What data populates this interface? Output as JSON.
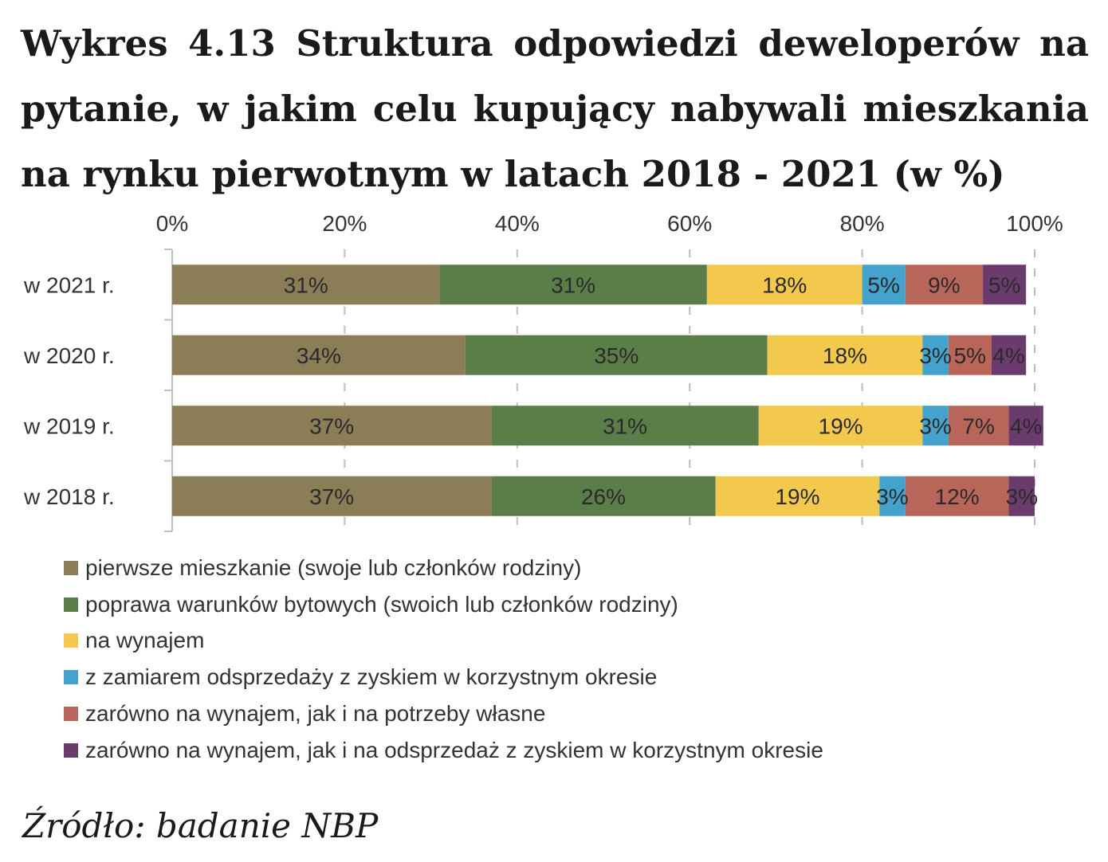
{
  "title": "Wykres 4.13 Struktura odpowiedzi deweloperów na pytanie, w jakim celu kupujący nabywali mieszkania na rynku pierwotnym w latach 2018 - 2021 (w %)",
  "source": "Źródło: badanie NBP",
  "chart_data": {
    "type": "bar",
    "orientation": "horizontal",
    "stacked": true,
    "normalized": true,
    "categories": [
      "w 2021 r.",
      "w 2020 r.",
      "w 2019 r.",
      "w 2018 r."
    ],
    "x_ticks": [
      "0%",
      "20%",
      "40%",
      "60%",
      "80%",
      "100%"
    ],
    "xlim": [
      0,
      100
    ],
    "x_axis_position": "top",
    "grid": "vertical dashed",
    "legend_position": "bottom",
    "series": [
      {
        "name": "pierwsze mieszkanie (swoje lub członków rodziny)",
        "color": "#8b7d55",
        "values": [
          31,
          34,
          37,
          37
        ],
        "labels": [
          "31%",
          "34%",
          "37%",
          "37%"
        ]
      },
      {
        "name": "poprawa warunków bytowych (swoich lub członków rodziny)",
        "color": "#5b7e49",
        "values": [
          31,
          35,
          31,
          26
        ],
        "labels": [
          "31%",
          "35%",
          "31%",
          "26%"
        ]
      },
      {
        "name": "na wynajem",
        "color": "#f2c94c",
        "values": [
          18,
          18,
          19,
          19
        ],
        "labels": [
          "18%",
          "18%",
          "19%",
          "19%"
        ]
      },
      {
        "name": "z zamiarem odsprzedaży z zyskiem w korzystnym okresie",
        "color": "#43a3cc",
        "values": [
          5,
          3,
          3,
          3
        ],
        "labels": [
          "5%",
          "3%",
          "3%",
          "3%"
        ]
      },
      {
        "name": "zarówno na wynajem, jak i na potrzeby własne",
        "color": "#b9665a",
        "values": [
          9,
          5,
          7,
          12
        ],
        "labels": [
          "9%",
          "5%",
          "7%",
          "12%"
        ]
      },
      {
        "name": "zarówno na wynajem, jak i na odsprzedaż z zyskiem w korzystnym okresie",
        "color": "#6b3b6e",
        "values": [
          5,
          4,
          4,
          3
        ],
        "labels": [
          "5%",
          "4%",
          "4%",
          "3%"
        ]
      }
    ]
  }
}
